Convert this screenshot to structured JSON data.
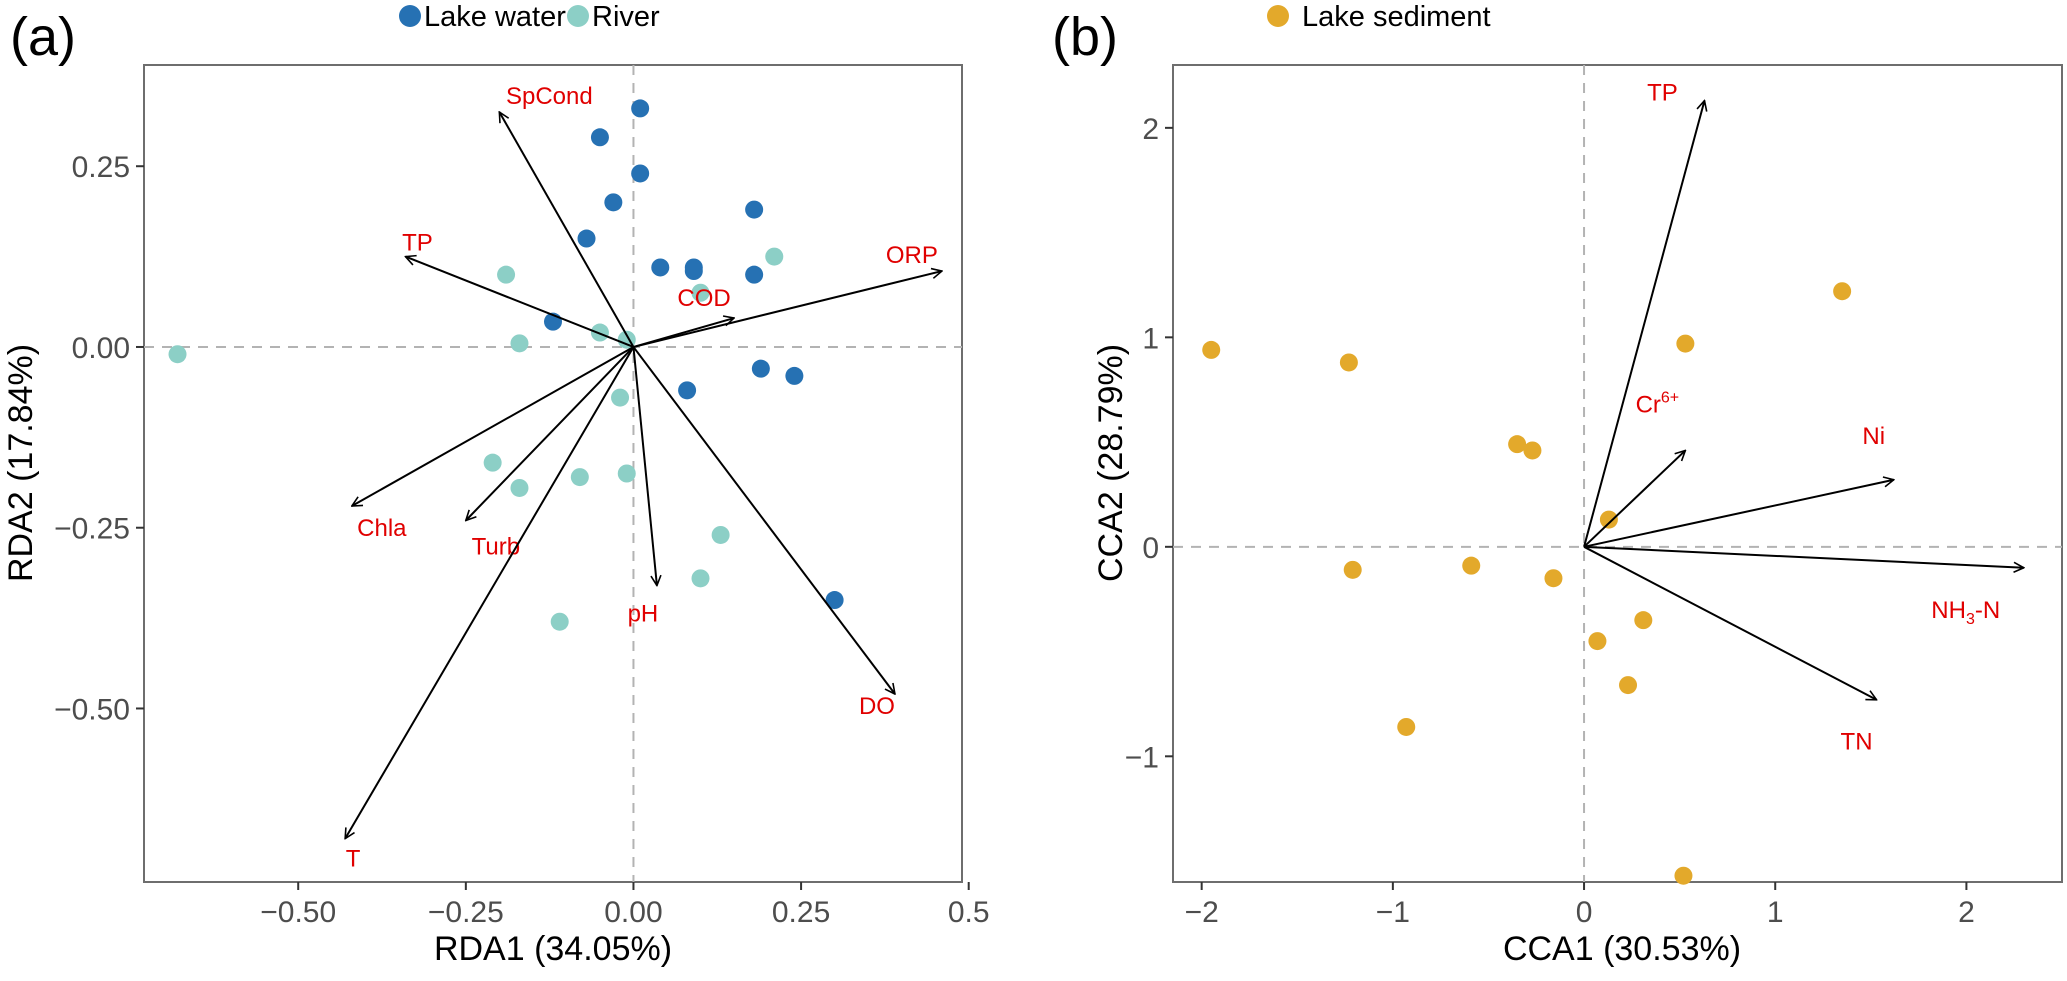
{
  "chart_data": [
    {
      "type": "scatter",
      "panel_label": "(a)",
      "title": "",
      "xlabel": "RDA1 (34.05%)",
      "ylabel": "RDA2 (17.84%)",
      "xlim": [
        -0.73,
        0.49
      ],
      "ylim": [
        -0.74,
        0.39
      ],
      "xticks": [
        -0.5,
        -0.25,
        0.0,
        0.25,
        0.5
      ],
      "xtick_labels": [
        "−0.50",
        "−0.25",
        "0.00",
        "0.25",
        "0.5"
      ],
      "yticks": [
        0.25,
        0.0,
        -0.25,
        -0.5
      ],
      "ytick_labels": [
        "0.25",
        "0.00",
        "−0.25",
        "−0.50"
      ],
      "grid": false,
      "reference_lines": {
        "x": 0,
        "y": 0,
        "style": "dashed"
      },
      "legend_position": "top",
      "series": [
        {
          "name": "Lake water",
          "color": "#2671b3",
          "points": [
            [
              0.01,
              0.33
            ],
            [
              -0.05,
              0.29
            ],
            [
              0.01,
              0.24
            ],
            [
              -0.03,
              0.2
            ],
            [
              -0.07,
              0.15
            ],
            [
              0.18,
              0.19
            ],
            [
              0.04,
              0.11
            ],
            [
              0.09,
              0.11
            ],
            [
              0.09,
              0.105
            ],
            [
              0.18,
              0.1
            ],
            [
              -0.12,
              0.035
            ],
            [
              0.19,
              -0.03
            ],
            [
              0.24,
              -0.04
            ],
            [
              0.08,
              -0.06
            ],
            [
              0.3,
              -0.35
            ]
          ]
        },
        {
          "name": "River",
          "color": "#8ccfc6",
          "points": [
            [
              -0.68,
              -0.01
            ],
            [
              -0.19,
              0.1
            ],
            [
              0.21,
              0.125
            ],
            [
              0.1,
              0.075
            ],
            [
              -0.17,
              0.005
            ],
            [
              -0.05,
              0.02
            ],
            [
              -0.01,
              0.01
            ],
            [
              -0.02,
              -0.07
            ],
            [
              -0.21,
              -0.16
            ],
            [
              -0.17,
              -0.195
            ],
            [
              -0.08,
              -0.18
            ],
            [
              -0.01,
              -0.175
            ],
            [
              0.13,
              -0.26
            ],
            [
              0.1,
              -0.32
            ],
            [
              -0.11,
              -0.38
            ]
          ]
        }
      ],
      "arrows": [
        {
          "label": "SpCond",
          "x": -0.2,
          "y": 0.325
        },
        {
          "label": "TP",
          "x": -0.34,
          "y": 0.125
        },
        {
          "label": "ORP",
          "x": 0.46,
          "y": 0.105
        },
        {
          "label": "COD",
          "x": 0.15,
          "y": 0.04
        },
        {
          "label": "Chla",
          "x": -0.42,
          "y": -0.22
        },
        {
          "label": "Turb",
          "x": -0.25,
          "y": -0.24
        },
        {
          "label": "pH",
          "x": 0.035,
          "y": -0.33
        },
        {
          "label": "DO",
          "x": 0.39,
          "y": -0.48
        },
        {
          "label": "T",
          "x": -0.43,
          "y": -0.68
        }
      ]
    },
    {
      "type": "scatter",
      "panel_label": "(b)",
      "title": "",
      "xlabel": "CCA1 (30.53%)",
      "ylabel": "CCA2 (28.79%)",
      "xlim": [
        -2.15,
        2.5
      ],
      "ylim": [
        -1.6,
        2.3
      ],
      "xticks": [
        -2,
        -1,
        0,
        1,
        2
      ],
      "xtick_labels": [
        "−2",
        "−1",
        "0",
        "1",
        "2"
      ],
      "yticks": [
        2,
        1,
        0,
        -1
      ],
      "ytick_labels": [
        "2",
        "1",
        "0",
        "−1"
      ],
      "grid": false,
      "reference_lines": {
        "x": 0,
        "y": 0,
        "style": "dashed"
      },
      "legend_position": "top",
      "series": [
        {
          "name": "Lake sediment",
          "color": "#e3a92b",
          "points": [
            [
              -1.95,
              0.94
            ],
            [
              -1.23,
              0.88
            ],
            [
              0.53,
              0.97
            ],
            [
              1.35,
              1.22
            ],
            [
              -0.35,
              0.49
            ],
            [
              -0.27,
              0.46
            ],
            [
              0.13,
              0.13
            ],
            [
              -1.21,
              -0.11
            ],
            [
              -0.59,
              -0.09
            ],
            [
              -0.16,
              -0.15
            ],
            [
              0.07,
              -0.45
            ],
            [
              0.31,
              -0.35
            ],
            [
              0.23,
              -0.66
            ],
            [
              -0.93,
              -0.86
            ],
            [
              0.52,
              -1.57
            ]
          ]
        }
      ],
      "arrows": [
        {
          "label": "TP",
          "sup": "",
          "sub": "",
          "x": 0.63,
          "y": 2.13
        },
        {
          "label": "Cr",
          "sup": "6+",
          "sub": "",
          "x": 0.53,
          "y": 0.46
        },
        {
          "label": "Ni",
          "sup": "",
          "sub": "",
          "x": 1.62,
          "y": 0.32
        },
        {
          "label": "NH",
          "sup": "",
          "sub": "3",
          "suffix": "-N",
          "x": 2.3,
          "y": -0.1
        },
        {
          "label": "TN",
          "sup": "",
          "sub": "",
          "x": 1.53,
          "y": -0.73
        }
      ]
    }
  ],
  "legends": {
    "a": [
      {
        "label": "Lake water",
        "color": "#2671b3"
      },
      {
        "label": "River",
        "color": "#8ccfc6"
      }
    ],
    "b": [
      {
        "label": "Lake sediment",
        "color": "#e3a92b"
      }
    ]
  }
}
